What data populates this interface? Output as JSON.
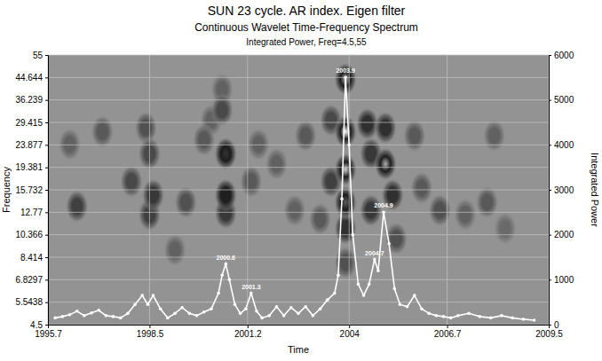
{
  "chart_data": {
    "type": "heatmap",
    "title": "SUN 23 cycle. AR index. Eigen filter",
    "subtitle": [
      "Continuous Wavelet Time-Frequency Spectrum",
      "Integrated Power, Freq=4.5,55"
    ],
    "x_label": "Time",
    "y_label": "Frequency",
    "y2_label": "Integrated Power",
    "xlim": [
      1995.7,
      2009.5
    ],
    "xticks": [
      1995.7,
      1998.5,
      2001.2,
      2004,
      2006.7,
      2009.5
    ],
    "ylim": [
      4.5,
      55
    ],
    "yticks": [
      4.5,
      5.5438,
      6.8297,
      8.414,
      10.366,
      12.77,
      15.732,
      19.381,
      23.877,
      29.415,
      36.239,
      44.644,
      55
    ],
    "log": "y",
    "grid": true,
    "y2lim": [
      0,
      6000
    ],
    "y2ticks": [
      0,
      1000,
      2000,
      3000,
      4000,
      5000,
      6000
    ],
    "heatmap": {
      "x": [
        1996.5,
        1996.3,
        1997.2,
        1998.0,
        1998.5,
        1998.6,
        1998.5,
        1998.4,
        1999.2,
        1999.5,
        2000.0,
        2000.2,
        2000.6,
        2000.6,
        2000.6,
        2000.5,
        2000.5,
        2001.3,
        2001.5,
        2002.0,
        2002.5,
        2002.8,
        2003.2,
        2003.5,
        2003.5,
        2003.9,
        2003.9,
        2003.9,
        2003.9,
        2003.9,
        2003.9,
        2004.5,
        2004.6,
        2004.6,
        2005.0,
        2005.0,
        2005.2,
        2005.3,
        2005.8,
        2006.0,
        2006.5,
        2007.2,
        2007.8,
        2008.0,
        2008.3
      ],
      "y": [
        13.5,
        24,
        27,
        17,
        22,
        15,
        12.5,
        28,
        9,
        14,
        25,
        30,
        22,
        15,
        12.7,
        33,
        40,
        17,
        24,
        20,
        13,
        26,
        12,
        30,
        17,
        44,
        27,
        19,
        14,
        11,
        8,
        29,
        22,
        13,
        20,
        28,
        15,
        10,
        26,
        16,
        13,
        12.5,
        14,
        26,
        11
      ],
      "values": [
        0.5,
        0.3,
        0.35,
        0.45,
        0.45,
        0.55,
        0.5,
        0.4,
        0.3,
        0.4,
        0.35,
        0.3,
        0.75,
        0.7,
        0.55,
        0.45,
        0.3,
        0.35,
        0.3,
        0.3,
        0.3,
        0.35,
        0.35,
        0.45,
        0.5,
        0.9,
        1.0,
        0.95,
        0.8,
        0.6,
        0.4,
        0.6,
        0.55,
        0.55,
        0.9,
        0.6,
        0.6,
        0.4,
        0.35,
        0.35,
        0.4,
        0.3,
        0.35,
        0.3,
        0.25
      ]
    },
    "series": [
      {
        "type": "line",
        "axis": "y2",
        "color": "#ffffff",
        "marker": "circle",
        "x": [
          1995.9,
          1996.1,
          1996.3,
          1996.5,
          1996.7,
          1996.9,
          1997.1,
          1997.3,
          1997.5,
          1997.7,
          1997.9,
          1998.1,
          1998.3,
          1998.45,
          1998.6,
          1998.8,
          1999.0,
          1999.2,
          1999.4,
          1999.6,
          1999.8,
          2000.0,
          2000.2,
          2000.4,
          2000.5,
          2000.6,
          2000.7,
          2000.85,
          2001.0,
          2001.15,
          2001.3,
          2001.45,
          2001.6,
          2001.8,
          2002.0,
          2002.2,
          2002.4,
          2002.6,
          2002.8,
          2003.0,
          2003.2,
          2003.4,
          2003.6,
          2003.7,
          2003.8,
          2003.9,
          2004.0,
          2004.1,
          2004.25,
          2004.4,
          2004.55,
          2004.7,
          2004.8,
          2004.95,
          2005.1,
          2005.25,
          2005.4,
          2005.6,
          2005.8,
          2006.0,
          2006.2,
          2006.4,
          2006.6,
          2006.8,
          2007.0,
          2007.3,
          2007.6,
          2007.9,
          2008.2,
          2008.5,
          2008.8,
          2009.1
        ],
        "values": [
          150,
          180,
          220,
          300,
          200,
          260,
          320,
          200,
          180,
          150,
          250,
          450,
          650,
          450,
          650,
          350,
          150,
          250,
          380,
          250,
          200,
          280,
          350,
          700,
          1100,
          1350,
          1000,
          450,
          250,
          350,
          700,
          300,
          150,
          200,
          400,
          200,
          380,
          250,
          400,
          200,
          350,
          550,
          700,
          1100,
          2800,
          5500,
          4000,
          2000,
          900,
          650,
          900,
          1450,
          1200,
          2500,
          1800,
          800,
          450,
          400,
          650,
          350,
          250,
          200,
          180,
          150,
          200,
          250,
          180,
          150,
          200,
          150,
          120,
          100
        ]
      }
    ],
    "annotations": [
      {
        "x": 2000.6,
        "y": 1350,
        "text": "2000.6"
      },
      {
        "x": 2001.3,
        "y": 700,
        "text": "2001.3"
      },
      {
        "x": 2003.9,
        "y": 5500,
        "text": "2003.9"
      },
      {
        "x": 2004.7,
        "y": 1450,
        "text": "2004.7"
      },
      {
        "x": 2004.95,
        "y": 2500,
        "text": "2004.9"
      }
    ]
  }
}
